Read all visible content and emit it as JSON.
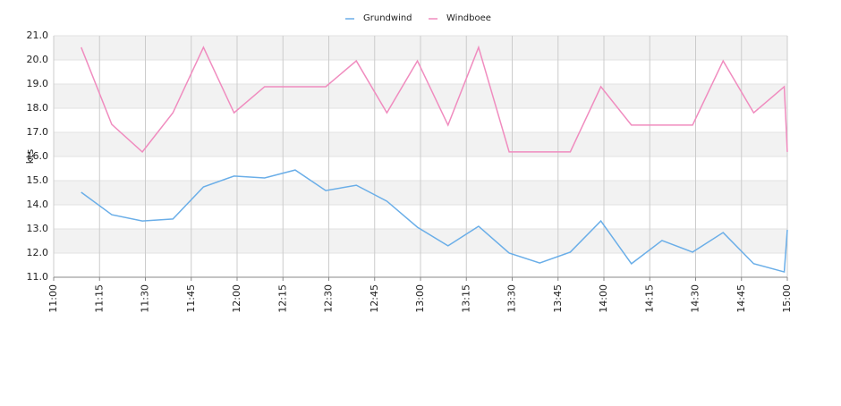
{
  "chart_data": {
    "type": "line",
    "y_label": "kts",
    "x": [
      "11:09",
      "11:19",
      "11:29",
      "11:39",
      "11:49",
      "11:59",
      "12:09",
      "12:19",
      "12:29",
      "12:39",
      "12:49",
      "12:59",
      "13:09",
      "13:19",
      "13:29",
      "13:39",
      "13:49",
      "13:59",
      "14:09",
      "14:19",
      "14:29",
      "14:39",
      "14:49",
      "14:59",
      "15:00"
    ],
    "series": [
      {
        "name": "Grundwind",
        "color": "#6aaee8",
        "values": [
          14.52,
          13.59,
          13.33,
          13.41,
          14.74,
          15.19,
          15.11,
          15.44,
          14.59,
          14.81,
          14.15,
          13.07,
          12.3,
          13.11,
          12.0,
          11.59,
          12.04,
          13.33,
          11.56,
          12.52,
          12.04,
          12.85,
          11.56,
          11.22,
          12.96
        ]
      },
      {
        "name": "Windboee",
        "color": "#f08cbf",
        "values": [
          20.52,
          17.33,
          16.19,
          17.81,
          20.52,
          17.81,
          18.89,
          18.89,
          18.89,
          19.96,
          17.81,
          19.96,
          17.3,
          20.52,
          16.19,
          16.19,
          16.19,
          18.89,
          17.3,
          17.3,
          17.3,
          19.96,
          17.81,
          18.89,
          16.19
        ]
      }
    ],
    "xlim": [
      "11:00",
      "15:00"
    ],
    "xticks": [
      "11:00",
      "11:15",
      "11:30",
      "11:45",
      "12:00",
      "12:15",
      "12:30",
      "12:45",
      "13:00",
      "13:15",
      "13:30",
      "13:45",
      "14:00",
      "14:15",
      "14:30",
      "14:45",
      "15:00"
    ],
    "ylim": [
      11,
      21
    ],
    "yticks": [
      {
        "value": 11,
        "label": "11.0"
      },
      {
        "value": 12,
        "label": "12.0"
      },
      {
        "value": 13,
        "label": "13.0"
      },
      {
        "value": 14,
        "label": "14.0"
      },
      {
        "value": 15,
        "label": "15.0"
      },
      {
        "value": 16,
        "label": "16.0"
      },
      {
        "value": 17,
        "label": "17.0"
      },
      {
        "value": 18,
        "label": "18.0"
      },
      {
        "value": 19,
        "label": "19.0"
      },
      {
        "value": 20,
        "label": "20.0"
      },
      {
        "value": 21,
        "label": "21.0"
      }
    ],
    "grid": true
  }
}
